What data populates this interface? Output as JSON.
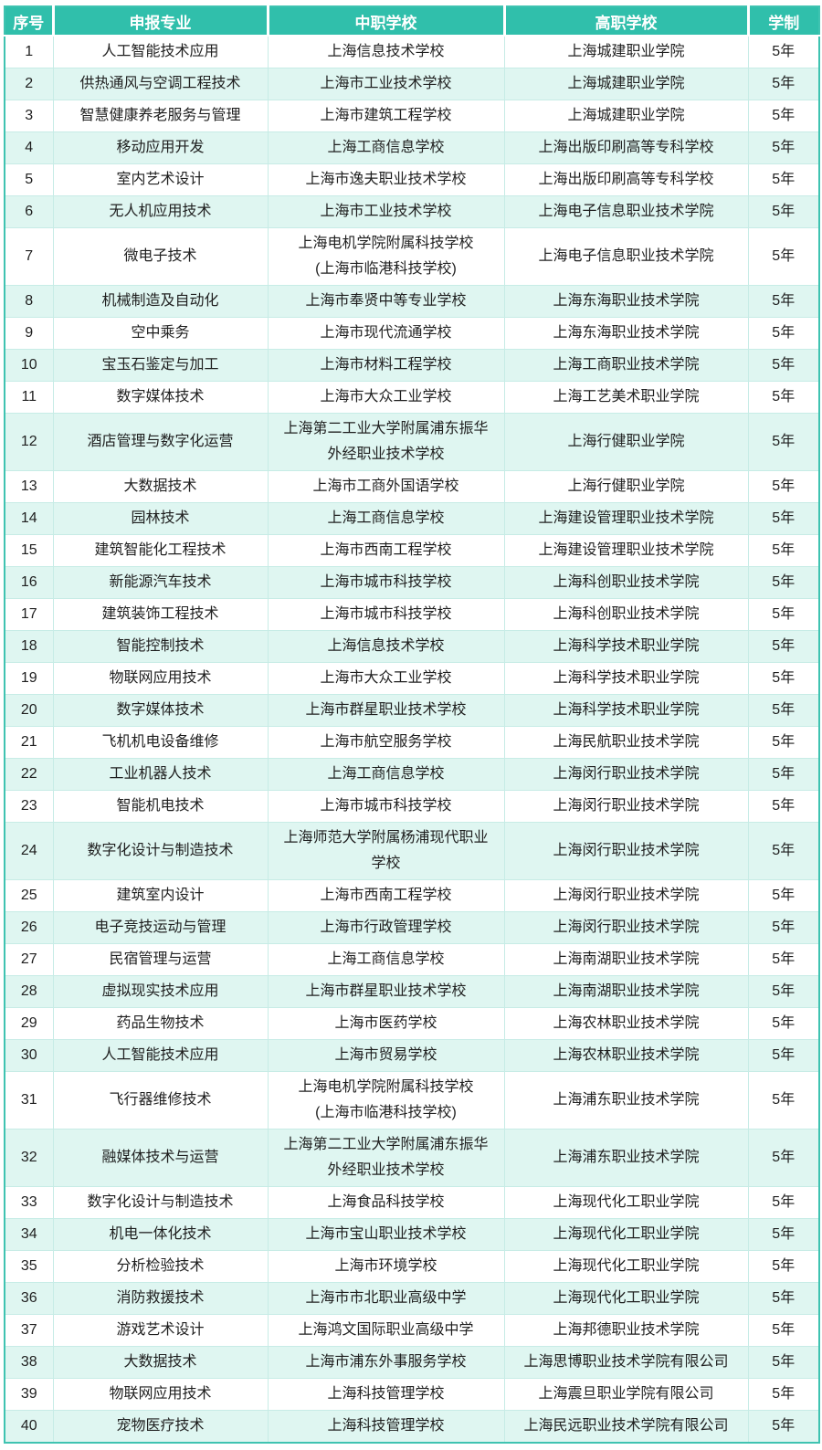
{
  "colors": {
    "header_bg": "#30BFAB",
    "header_text": "#FFFFFF",
    "row_bg": "#FFFFFF",
    "row_alt_bg": "#DFF6F1",
    "border_outer": "#3FC3B1",
    "border_inner": "#C7ECE6",
    "body_text": "#1F1F1F"
  },
  "table": {
    "columns": [
      {
        "key": "index",
        "label": "序号"
      },
      {
        "key": "major",
        "label": "申报专业"
      },
      {
        "key": "mid_school",
        "label": "中职学校"
      },
      {
        "key": "high_school",
        "label": "高职学校"
      },
      {
        "key": "duration",
        "label": "学制"
      }
    ],
    "rows": [
      {
        "index": "1",
        "major": "人工智能技术应用",
        "mid_school": "上海信息技术学校",
        "high_school": "上海城建职业学院",
        "duration": "5年"
      },
      {
        "index": "2",
        "major": "供热通风与空调工程技术",
        "mid_school": "上海市工业技术学校",
        "high_school": "上海城建职业学院",
        "duration": "5年"
      },
      {
        "index": "3",
        "major": "智慧健康养老服务与管理",
        "mid_school": "上海市建筑工程学校",
        "high_school": "上海城建职业学院",
        "duration": "5年"
      },
      {
        "index": "4",
        "major": "移动应用开发",
        "mid_school": "上海工商信息学校",
        "high_school": "上海出版印刷高等专科学校",
        "duration": "5年"
      },
      {
        "index": "5",
        "major": "室内艺术设计",
        "mid_school": "上海市逸夫职业技术学校",
        "high_school": "上海出版印刷高等专科学校",
        "duration": "5年"
      },
      {
        "index": "6",
        "major": "无人机应用技术",
        "mid_school": "上海市工业技术学校",
        "high_school": "上海电子信息职业技术学院",
        "duration": "5年"
      },
      {
        "index": "7",
        "major": "微电子技术",
        "mid_school": "上海电机学院附属科技学校\n(上海市临港科技学校)",
        "high_school": "上海电子信息职业技术学院",
        "duration": "5年"
      },
      {
        "index": "8",
        "major": "机械制造及自动化",
        "mid_school": "上海市奉贤中等专业学校",
        "high_school": "上海东海职业技术学院",
        "duration": "5年"
      },
      {
        "index": "9",
        "major": "空中乘务",
        "mid_school": "上海市现代流通学校",
        "high_school": "上海东海职业技术学院",
        "duration": "5年"
      },
      {
        "index": "10",
        "major": "宝玉石鉴定与加工",
        "mid_school": "上海市材料工程学校",
        "high_school": "上海工商职业技术学院",
        "duration": "5年"
      },
      {
        "index": "11",
        "major": "数字媒体技术",
        "mid_school": "上海市大众工业学校",
        "high_school": "上海工艺美术职业学院",
        "duration": "5年"
      },
      {
        "index": "12",
        "major": "酒店管理与数字化运营",
        "mid_school": "上海第二工业大学附属浦东振华\n外经职业技术学校",
        "high_school": "上海行健职业学院",
        "duration": "5年"
      },
      {
        "index": "13",
        "major": "大数据技术",
        "mid_school": "上海市工商外国语学校",
        "high_school": "上海行健职业学院",
        "duration": "5年"
      },
      {
        "index": "14",
        "major": "园林技术",
        "mid_school": "上海工商信息学校",
        "high_school": "上海建设管理职业技术学院",
        "duration": "5年"
      },
      {
        "index": "15",
        "major": "建筑智能化工程技术",
        "mid_school": "上海市西南工程学校",
        "high_school": "上海建设管理职业技术学院",
        "duration": "5年"
      },
      {
        "index": "16",
        "major": "新能源汽车技术",
        "mid_school": "上海市城市科技学校",
        "high_school": "上海科创职业技术学院",
        "duration": "5年"
      },
      {
        "index": "17",
        "major": "建筑装饰工程技术",
        "mid_school": "上海市城市科技学校",
        "high_school": "上海科创职业技术学院",
        "duration": "5年"
      },
      {
        "index": "18",
        "major": "智能控制技术",
        "mid_school": "上海信息技术学校",
        "high_school": "上海科学技术职业学院",
        "duration": "5年"
      },
      {
        "index": "19",
        "major": "物联网应用技术",
        "mid_school": "上海市大众工业学校",
        "high_school": "上海科学技术职业学院",
        "duration": "5年"
      },
      {
        "index": "20",
        "major": "数字媒体技术",
        "mid_school": "上海市群星职业技术学校",
        "high_school": "上海科学技术职业学院",
        "duration": "5年"
      },
      {
        "index": "21",
        "major": "飞机机电设备维修",
        "mid_school": "上海市航空服务学校",
        "high_school": "上海民航职业技术学院",
        "duration": "5年"
      },
      {
        "index": "22",
        "major": "工业机器人技术",
        "mid_school": "上海工商信息学校",
        "high_school": "上海闵行职业技术学院",
        "duration": "5年"
      },
      {
        "index": "23",
        "major": "智能机电技术",
        "mid_school": "上海市城市科技学校",
        "high_school": "上海闵行职业技术学院",
        "duration": "5年"
      },
      {
        "index": "24",
        "major": "数字化设计与制造技术",
        "mid_school": "上海师范大学附属杨浦现代职业\n学校",
        "high_school": "上海闵行职业技术学院",
        "duration": "5年"
      },
      {
        "index": "25",
        "major": "建筑室内设计",
        "mid_school": "上海市西南工程学校",
        "high_school": "上海闵行职业技术学院",
        "duration": "5年"
      },
      {
        "index": "26",
        "major": "电子竞技运动与管理",
        "mid_school": "上海市行政管理学校",
        "high_school": "上海闵行职业技术学院",
        "duration": "5年"
      },
      {
        "index": "27",
        "major": "民宿管理与运营",
        "mid_school": "上海工商信息学校",
        "high_school": "上海南湖职业技术学院",
        "duration": "5年"
      },
      {
        "index": "28",
        "major": "虚拟现实技术应用",
        "mid_school": "上海市群星职业技术学校",
        "high_school": "上海南湖职业技术学院",
        "duration": "5年"
      },
      {
        "index": "29",
        "major": "药品生物技术",
        "mid_school": "上海市医药学校",
        "high_school": "上海农林职业技术学院",
        "duration": "5年"
      },
      {
        "index": "30",
        "major": "人工智能技术应用",
        "mid_school": "上海市贸易学校",
        "high_school": "上海农林职业技术学院",
        "duration": "5年"
      },
      {
        "index": "31",
        "major": "飞行器维修技术",
        "mid_school": "上海电机学院附属科技学校\n(上海市临港科技学校)",
        "high_school": "上海浦东职业技术学院",
        "duration": "5年"
      },
      {
        "index": "32",
        "major": "融媒体技术与运营",
        "mid_school": "上海第二工业大学附属浦东振华\n外经职业技术学校",
        "high_school": "上海浦东职业技术学院",
        "duration": "5年"
      },
      {
        "index": "33",
        "major": "数字化设计与制造技术",
        "mid_school": "上海食品科技学校",
        "high_school": "上海现代化工职业学院",
        "duration": "5年"
      },
      {
        "index": "34",
        "major": "机电一体化技术",
        "mid_school": "上海市宝山职业技术学校",
        "high_school": "上海现代化工职业学院",
        "duration": "5年"
      },
      {
        "index": "35",
        "major": "分析检验技术",
        "mid_school": "上海市环境学校",
        "high_school": "上海现代化工职业学院",
        "duration": "5年"
      },
      {
        "index": "36",
        "major": "消防救援技术",
        "mid_school": "上海市市北职业高级中学",
        "high_school": "上海现代化工职业学院",
        "duration": "5年"
      },
      {
        "index": "37",
        "major": "游戏艺术设计",
        "mid_school": "上海鸿文国际职业高级中学",
        "high_school": "上海邦德职业技术学院",
        "duration": "5年"
      },
      {
        "index": "38",
        "major": "大数据技术",
        "mid_school": "上海市浦东外事服务学校",
        "high_school": "上海思博职业技术学院有限公司",
        "duration": "5年"
      },
      {
        "index": "39",
        "major": "物联网应用技术",
        "mid_school": "上海科技管理学校",
        "high_school": "上海震旦职业学院有限公司",
        "duration": "5年"
      },
      {
        "index": "40",
        "major": "宠物医疗技术",
        "mid_school": "上海科技管理学校",
        "high_school": "上海民远职业技术学院有限公司",
        "duration": "5年"
      }
    ]
  }
}
